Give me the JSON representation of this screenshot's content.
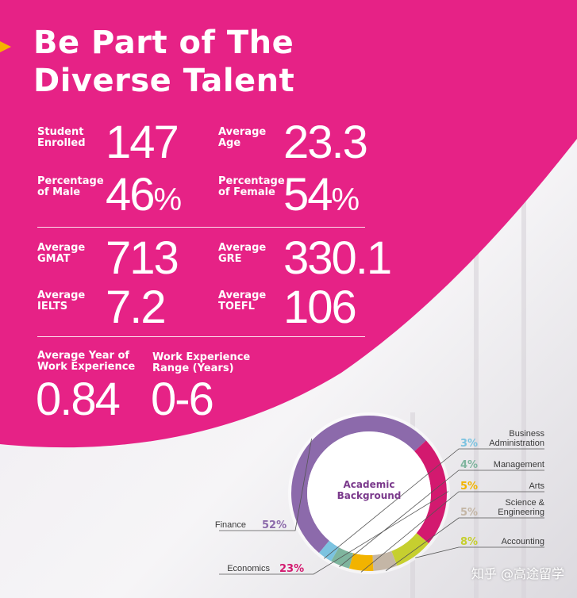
{
  "colors": {
    "magenta": "#e5157f",
    "accent_arrow": "#f6b400"
  },
  "title": {
    "line1": "Be Part of The",
    "line2": "Diverse Talent"
  },
  "stats": {
    "students": {
      "label": "Student\nEnrolled",
      "value": "147"
    },
    "age": {
      "label": "Average\nAge",
      "value": "23.3"
    },
    "male": {
      "label": "Percentage\nof Male",
      "value": "46",
      "unit": "%"
    },
    "female": {
      "label": "Percentage\nof Female",
      "value": "54",
      "unit": "%"
    },
    "gmat": {
      "label": "Average\nGMAT",
      "value": "713"
    },
    "gre": {
      "label": "Average\nGRE",
      "value": "330.1"
    },
    "ielts": {
      "label": "Average\nIELTS",
      "value": "7.2"
    },
    "toefl": {
      "label": "Average\nTOEFL",
      "value": "106"
    },
    "work_years": {
      "label": "Average Year of\nWork Experience",
      "value": "0.84"
    },
    "work_range": {
      "label": "Work Experience\nRange (Years)",
      "value": "0-6"
    }
  },
  "chart_data": {
    "type": "pie",
    "title": "Academic\nBackground",
    "categories": [
      "Finance",
      "Economics",
      "Accounting",
      "Science & Engineering",
      "Arts",
      "Management",
      "Business Administration"
    ],
    "values": [
      52,
      23,
      8,
      5,
      5,
      4,
      3
    ],
    "labels": [
      "52%",
      "23%",
      "8%",
      "5%",
      "5%",
      "4%",
      "3%"
    ],
    "colors": [
      "#8c6aab",
      "#d3196f",
      "#c6cf2f",
      "#c4b6a6",
      "#f2b300",
      "#7fb59e",
      "#7cc3e0"
    ]
  },
  "watermark": "知乎 @高途留学"
}
